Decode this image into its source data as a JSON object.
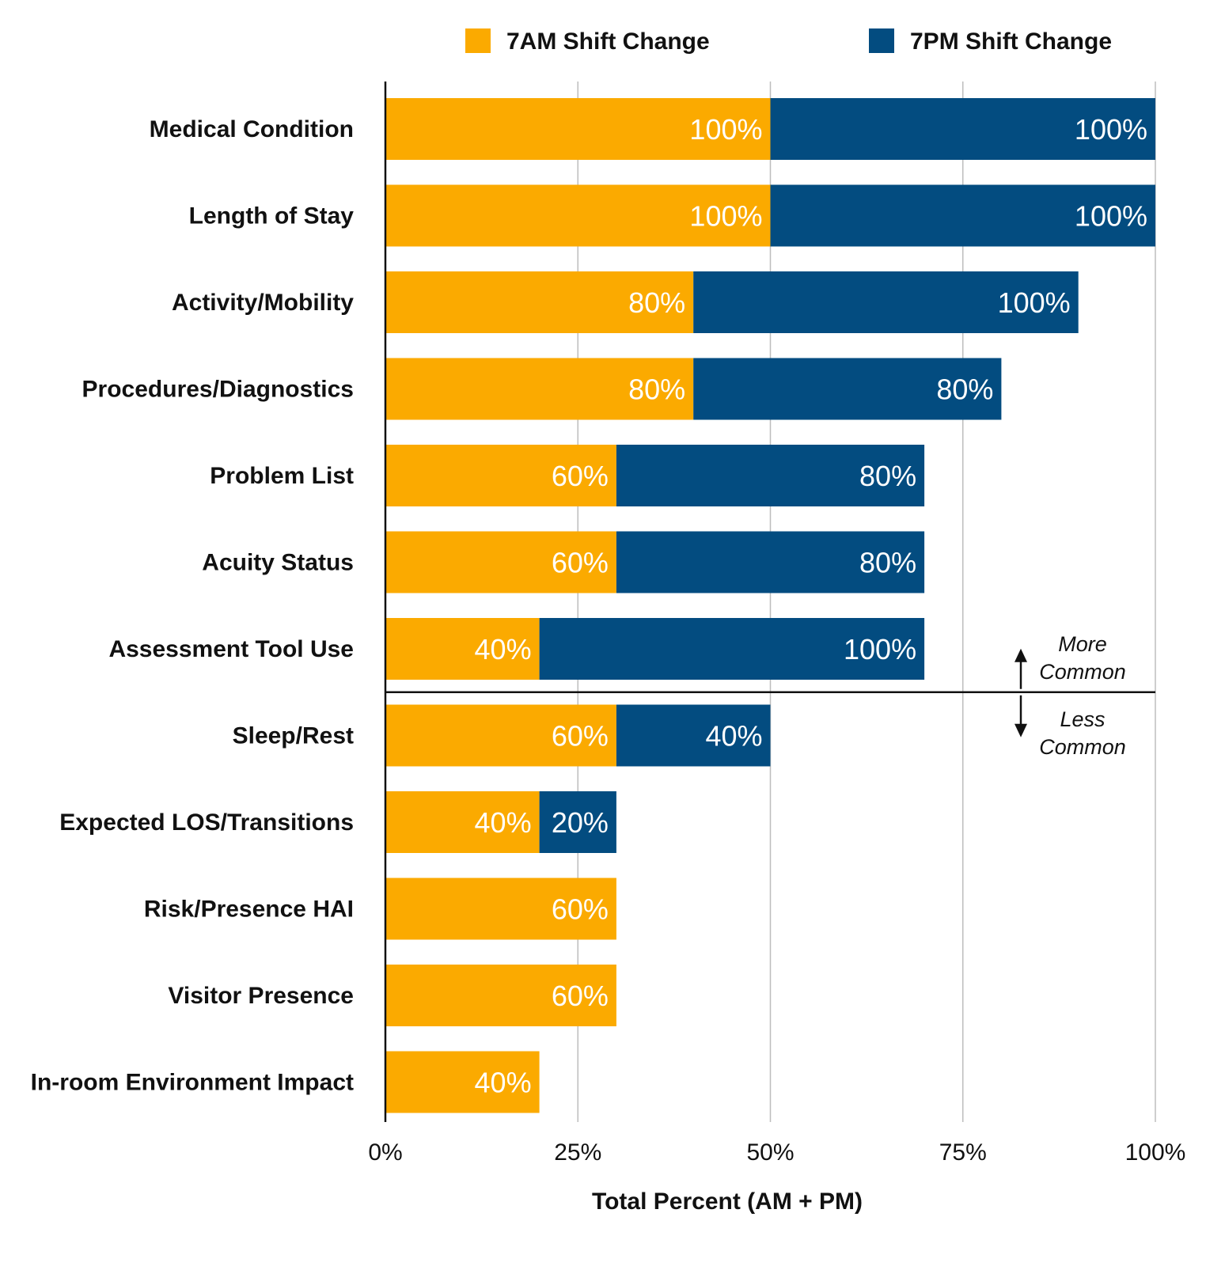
{
  "chart_data": {
    "type": "bar",
    "orientation": "horizontal",
    "stacked": true,
    "title": "",
    "xlabel": "Total Percent (AM + PM)",
    "ylabel": "",
    "xlim": [
      0,
      100
    ],
    "x_ticks": [
      0,
      25,
      50,
      75,
      100
    ],
    "x_tick_labels": [
      "0%",
      "25%",
      "50%",
      "75%",
      "100%"
    ],
    "grid": true,
    "legend_position": "top",
    "categories": [
      "Medical Condition",
      "Length of Stay",
      "Activity/Mobility",
      "Procedures/Diagnostics",
      "Problem List",
      "Acuity Status",
      "Assessment Tool Use",
      "Sleep/Rest",
      "Expected LOS/Transitions",
      "Risk/Presence HAI",
      "Visitor Presence",
      "In-room Environment Impact"
    ],
    "series": [
      {
        "name": "7AM Shift Change",
        "color": "#FBAA00",
        "values": [
          50,
          50,
          40,
          40,
          30,
          30,
          20,
          30,
          20,
          30,
          30,
          20
        ],
        "labels": [
          "100%",
          "100%",
          "80%",
          "80%",
          "60%",
          "60%",
          "40%",
          "60%",
          "40%",
          "60%",
          "60%",
          "40%"
        ]
      },
      {
        "name": "7PM Shift Change",
        "color": "#034C80",
        "values": [
          50,
          50,
          50,
          40,
          40,
          40,
          50,
          20,
          10,
          0,
          0,
          0
        ],
        "labels": [
          "100%",
          "100%",
          "100%",
          "80%",
          "80%",
          "80%",
          "100%",
          "40%",
          "20%",
          "",
          "",
          ""
        ]
      }
    ],
    "divider": {
      "after_category": "Assessment Tool Use",
      "upper_label": [
        "More",
        "Common"
      ],
      "lower_label": [
        "Less",
        "Common"
      ]
    }
  }
}
